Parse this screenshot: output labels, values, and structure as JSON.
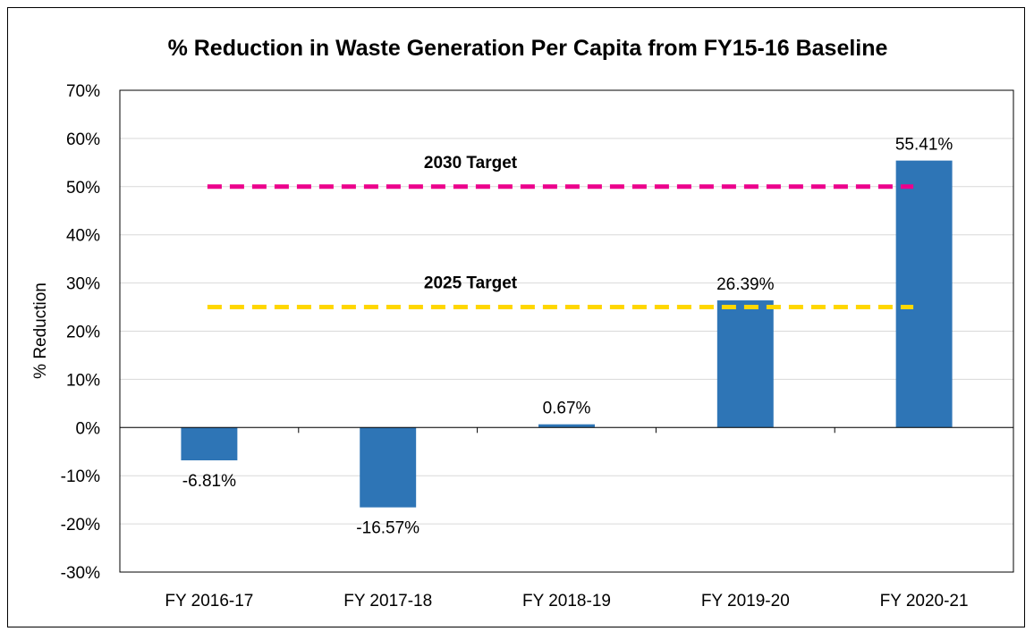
{
  "chart_data": {
    "type": "bar",
    "title": "% Reduction in Waste Generation Per Capita from FY15-16 Baseline",
    "xlabel": "",
    "ylabel": "% Reduction",
    "ylim": [
      -30,
      70
    ],
    "yticks": [
      70,
      60,
      50,
      40,
      30,
      20,
      10,
      0,
      -10,
      -20,
      -30
    ],
    "ytick_labels": [
      "70%",
      "60%",
      "50%",
      "40%",
      "30%",
      "20%",
      "10%",
      "0%",
      "-10%",
      "-20%",
      "-30%"
    ],
    "categories": [
      "FY 2016-17",
      "FY 2017-18",
      "FY 2018-19",
      "FY 2019-20",
      "FY 2020-21"
    ],
    "values": [
      -6.81,
      -16.57,
      0.67,
      26.39,
      55.41
    ],
    "data_labels": [
      "-6.81%",
      "-16.57%",
      "0.67%",
      "26.39%",
      "55.41%"
    ],
    "bar_color": "#2E75B6",
    "grid": true,
    "legend": "none",
    "targets": [
      {
        "label": "2030 Target",
        "value": 50,
        "color": "#EC008C",
        "style": "dashed"
      },
      {
        "label": "2025 Target",
        "value": 25,
        "color": "#FFD700",
        "style": "dashed"
      }
    ]
  }
}
